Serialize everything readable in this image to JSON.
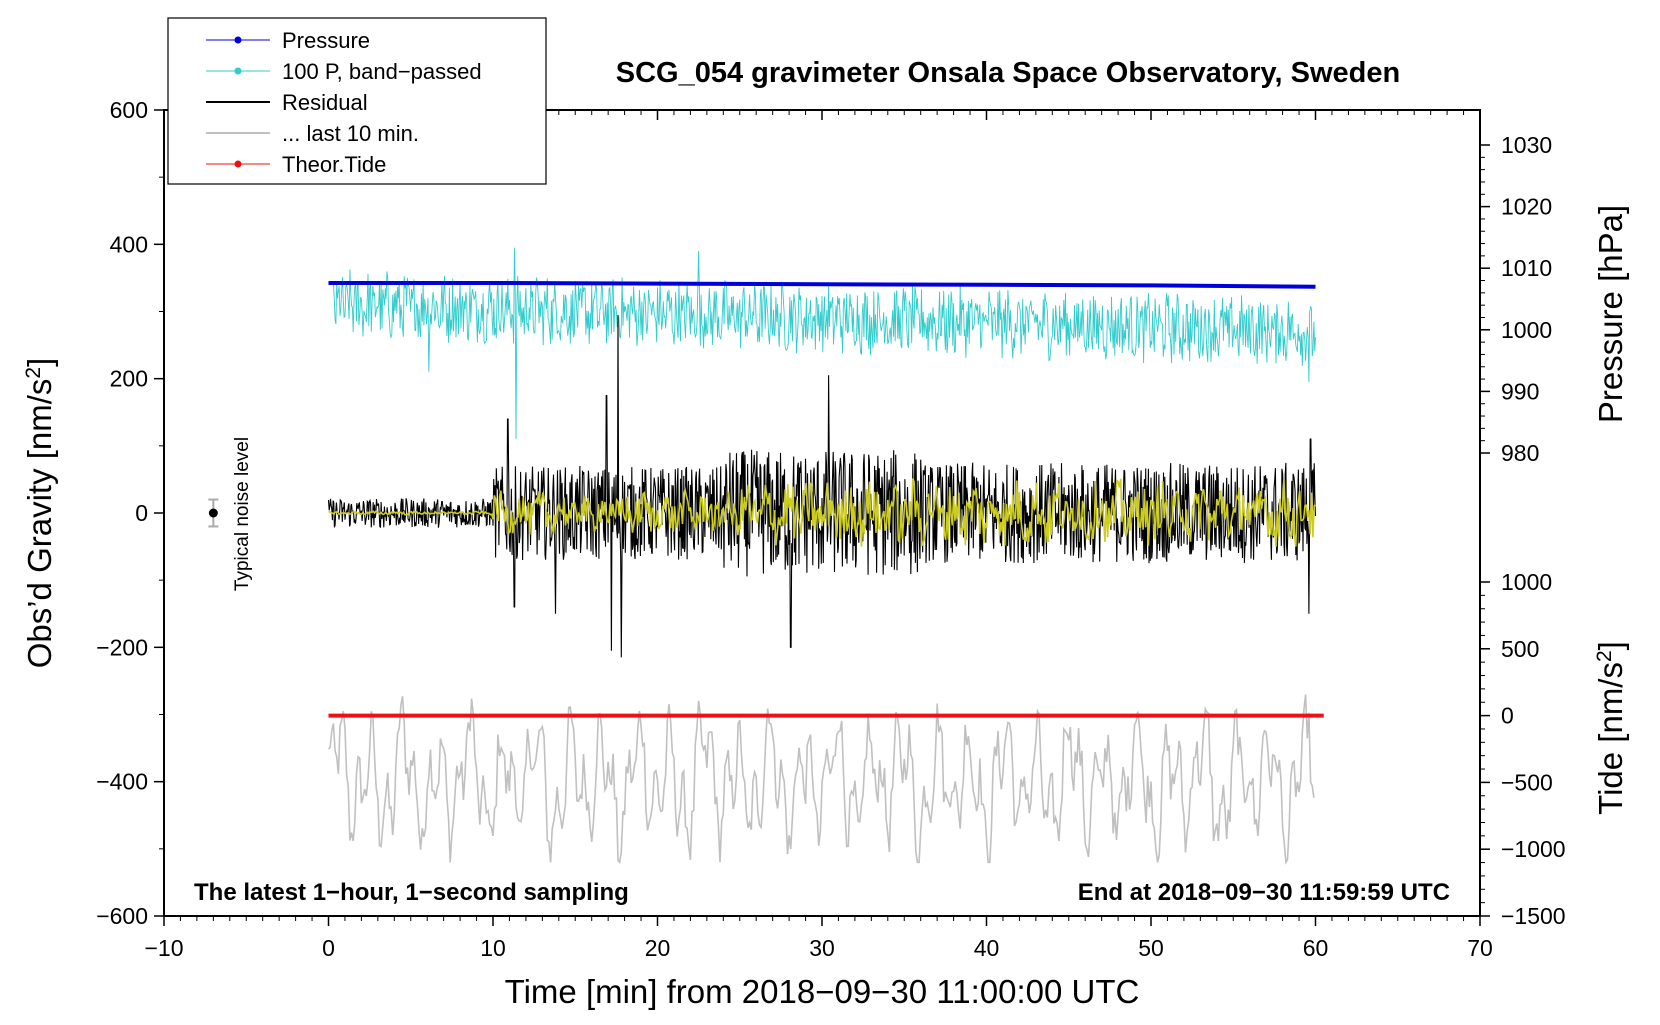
{
  "chart_data": {
    "type": "line",
    "title": "SCG_054 gravimeter Onsala Space Observatory, Sweden",
    "xlabel": "Time [min] from 2018−09−30 11:00:00 UTC",
    "ylabel_main": "Obs’d Gravity [nm/s",
    "ylabel_pressure": "Pressure [hPa]",
    "ylabel_tide": "Tide [nm/s",
    "ylabel_sup": "2",
    "ylabel_close": "]",
    "xlim": [
      -10,
      70
    ],
    "ylim": [
      -600,
      600
    ],
    "pressure_range": [
      980,
      1030
    ],
    "tide_range": [
      -1500,
      1000
    ],
    "x_ticks": [
      "−10",
      "0",
      "10",
      "20",
      "30",
      "40",
      "50",
      "60",
      "70"
    ],
    "x_tick_values": [
      -10,
      0,
      10,
      20,
      30,
      40,
      50,
      60,
      70
    ],
    "y_ticks": [
      "600",
      "400",
      "200",
      "0",
      "−200",
      "−400",
      "−600"
    ],
    "y_tick_values": [
      600,
      400,
      200,
      0,
      -200,
      -400,
      -600
    ],
    "pressure_ticks": [
      "1030",
      "1020",
      "1010",
      "1000",
      "990",
      "980"
    ],
    "pressure_tick_values": [
      1030,
      1020,
      1010,
      1000,
      990,
      980
    ],
    "tide_ticks": [
      "1000",
      "500",
      "0",
      "−500",
      "−1000",
      "−1500"
    ],
    "tide_tick_values": [
      1000,
      500,
      0,
      -500,
      -1000,
      -1500
    ],
    "legend": [
      "Pressure",
      "100 P, band−passed",
      "Residual",
      "... last 10 min.",
      "Theor.Tide"
    ],
    "legend_placement": "top-left",
    "annotation_left": "The latest 1−hour, 1−second sampling",
    "annotation_right": "End at 2018−09−30 11:59:59 UTC",
    "noise_label": "Typical noise level",
    "noise_marker": {
      "x": -7,
      "y": 0,
      "err": 20
    },
    "colors": {
      "pressure": "#0000dd",
      "bandpassed": "#33cccc",
      "residual": "#000000",
      "residual_smooth": "#cccc22",
      "last10": "#c0c0c0",
      "tide": "#ee1111"
    },
    "series": [
      {
        "name": "Pressure",
        "axis": "pressure",
        "x": [
          0,
          10,
          20,
          30,
          40,
          50,
          60
        ],
        "values": [
          1007.6,
          1007.6,
          1007.5,
          1007.4,
          1007.3,
          1007.2,
          1007.0
        ]
      },
      {
        "name": "100 P, band-passed",
        "axis": "gravity",
        "x_range": [
          0.3,
          60
        ],
        "level_start": 310,
        "level_end": 270,
        "peaks": [
          [
            11.3,
            395
          ],
          [
            11.4,
            110
          ],
          [
            22.5,
            390
          ],
          [
            6.1,
            210
          ],
          [
            59.6,
            195
          ]
        ]
      },
      {
        "name": "Residual",
        "axis": "gravity",
        "x_range": [
          0,
          60
        ],
        "level": 0,
        "peaks": [
          [
            10.9,
            140
          ],
          [
            11.3,
            -140
          ],
          [
            13.8,
            -150
          ],
          [
            16.9,
            175
          ],
          [
            17.2,
            -205
          ],
          [
            17.6,
            295
          ],
          [
            17.8,
            -215
          ],
          [
            30.4,
            205
          ],
          [
            28.1,
            -200
          ],
          [
            59.7,
            110
          ],
          [
            59.6,
            -150
          ]
        ]
      },
      {
        "name": "... last 10 min.",
        "axis": "gravity",
        "x_range": [
          0,
          60
        ],
        "level": -400,
        "min": -520,
        "max": -260
      },
      {
        "name": "Theor.Tide",
        "axis": "tide",
        "x": [
          0,
          60.5
        ],
        "values": [
          0,
          0
        ]
      }
    ]
  }
}
